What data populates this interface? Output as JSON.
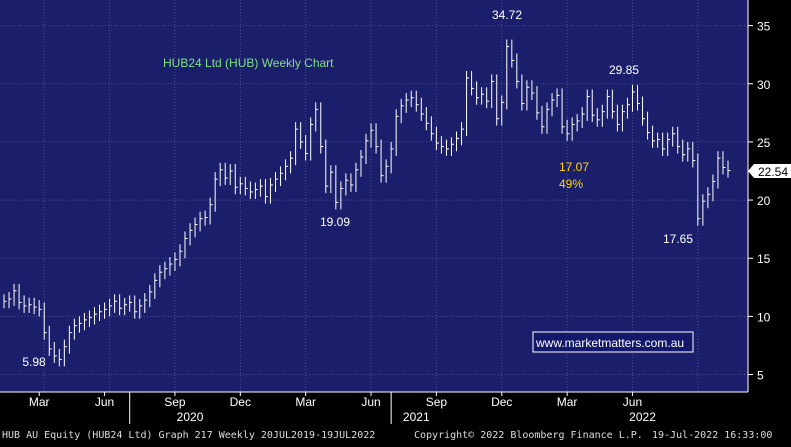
{
  "chart_data": {
    "type": "line",
    "title": "HUB24 Ltd (HUB) Weekly Chart",
    "ylim": [
      3.5,
      37.2
    ],
    "yticks": [
      5,
      10,
      15,
      20,
      25,
      30,
      35
    ],
    "x_month_ticks": [
      "Mar",
      "Jun",
      "Sep",
      "Dec",
      "Mar",
      "Jun",
      "Sep",
      "Dec",
      "Mar",
      "Jun"
    ],
    "x_year_labels": [
      "2020",
      "2021",
      "2022"
    ],
    "last_price_label": "22.54",
    "grid": true,
    "series": [
      {
        "values": [
          11.3,
          11.5,
          12.2,
          11.2,
          10.9,
          11.0,
          10.8,
          10.6,
          8.6,
          7.2,
          6.6,
          6.3,
          7.4,
          8.6,
          9.2,
          9.4,
          9.7,
          9.9,
          10.2,
          10.4,
          10.6,
          10.9,
          11.3,
          10.7,
          11.0,
          11.2,
          10.4,
          10.9,
          11.4,
          12.1,
          13.1,
          13.8,
          14.1,
          14.5,
          14.9,
          15.6,
          16.7,
          17.4,
          17.9,
          18.4,
          18.5,
          19.6,
          21.8,
          22.6,
          21.9,
          22.5,
          21.1,
          21.4,
          21.0,
          20.7,
          20.9,
          21.2,
          20.3,
          21.3,
          21.8,
          22.3,
          22.9,
          23.6,
          26.1,
          25.0,
          24.0,
          26.5,
          27.8,
          24.6,
          21.2,
          22.4,
          19.8,
          21.0,
          21.7,
          21.3,
          22.6,
          23.7,
          25.1,
          26.0,
          24.6,
          22.1,
          22.9,
          24.4,
          27.2,
          28.1,
          28.6,
          28.8,
          28.2,
          27.4,
          26.6,
          25.7,
          24.9,
          24.6,
          24.4,
          24.8,
          25.3,
          26.1,
          30.5,
          29.6,
          28.8,
          29.1,
          28.5,
          30.2,
          27.0,
          28.4,
          33.2,
          32.0,
          30.2,
          28.3,
          29.7,
          29.2,
          27.5,
          26.3,
          27.8,
          28.6,
          29.0,
          26.3,
          25.7,
          26.5,
          26.8,
          27.4,
          28.9,
          27.3,
          26.9,
          27.6,
          28.9,
          27.6,
          26.5,
          27.6,
          28.2,
          29.3,
          28.3,
          27.0,
          25.8,
          25.1,
          25.2,
          24.4,
          25.2,
          25.7,
          24.6,
          23.9,
          24.4,
          23.4,
          18.4,
          19.9,
          20.5,
          21.6,
          23.6,
          22.8,
          22.54
        ]
      }
    ],
    "annotations": [
      {
        "text": "34.72",
        "color": "#ffffff"
      },
      {
        "text": "29.85",
        "color": "#ffffff"
      },
      {
        "text": "17.07",
        "color": "#ffd700"
      },
      {
        "text": "49%",
        "color": "#ffd700"
      },
      {
        "text": "19.09",
        "color": "#ffffff"
      },
      {
        "text": "17.65",
        "color": "#ffffff"
      },
      {
        "text": "5.98",
        "color": "#ffffff"
      }
    ],
    "watermark": "www.marketmatters.com.au",
    "colors": {
      "plot_bg": "#1b1f6b",
      "grid": "#4a4f95",
      "bars": "#ffffff",
      "title": "#7fe07f",
      "highlight": "#ffd700",
      "watermark_border": "#ffffff",
      "watermark_bg": "#13186a"
    }
  },
  "footer": {
    "left": "HUB AU Equity (HUB24 Ltd) Graph 217  Weekly 20JUL2019-19JUL2022",
    "center": "Copyright© 2022 Bloomberg Finance L.P.",
    "right": "19-Jul-2022 16:33:00"
  }
}
